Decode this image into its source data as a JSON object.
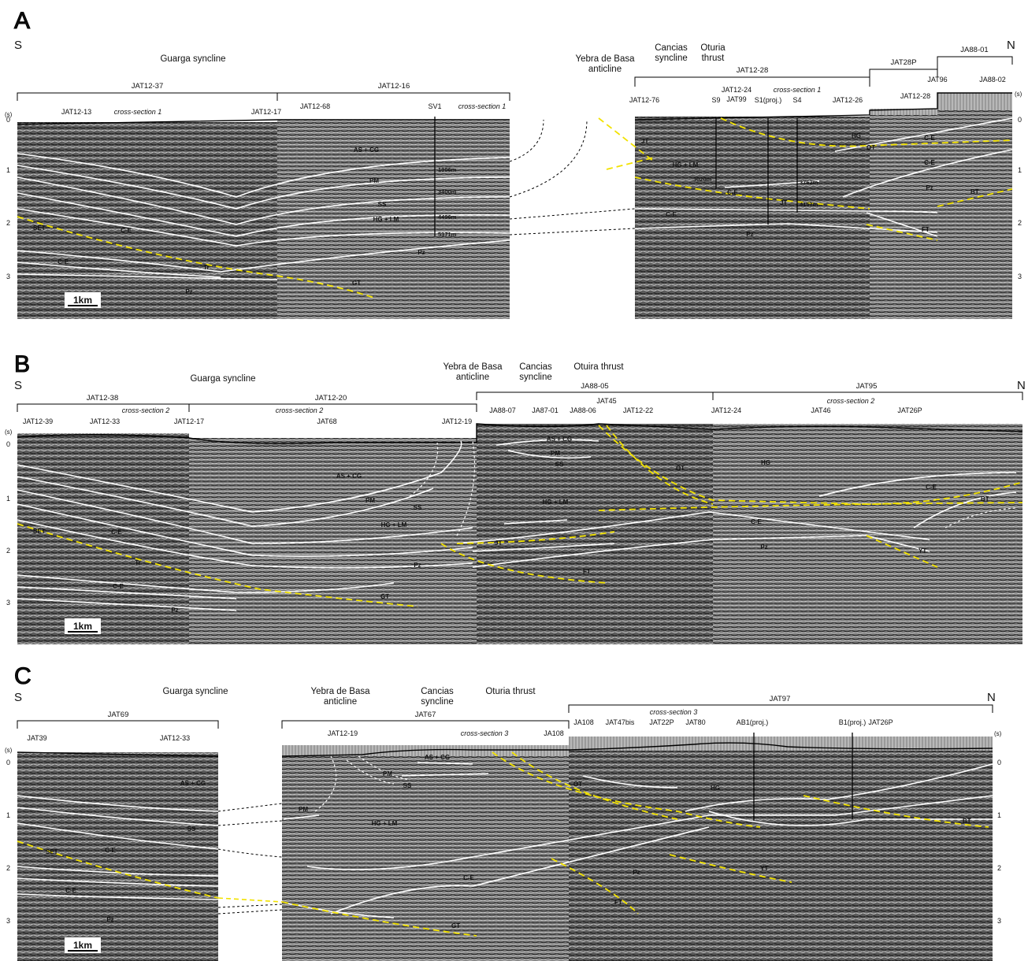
{
  "colors": {
    "yellow": "#f2e200",
    "white": "#ffffff",
    "black": "#000000",
    "seismic_dark": "#303030",
    "seismic_light": "#bdbdbd"
  },
  "panels": [
    {
      "letter": "A",
      "south": "S",
      "north": "N",
      "structures": [
        "Guarga syncline",
        "Yebra de Basa",
        "anticline",
        "Cancias",
        "syncline",
        "Oturia",
        "thrust"
      ],
      "lines": [
        "JAT12-37",
        "JAT12-16",
        "JAT12-28",
        "JAT28P",
        "JA88-01"
      ],
      "wells": [
        "JAT12-13",
        "cross-section 1",
        "JAT12-17",
        "JAT12-68",
        "SV1",
        "cross-section 1",
        "JAT12-76",
        "S9",
        "JAT12-24",
        "JAT99",
        "S1(proj.)",
        "cross-section 1",
        "S4",
        "JAT12-26",
        "JAT12-28",
        "JAT96",
        "JA88-02"
      ],
      "units": [
        "AS + CG",
        "PM",
        "SS",
        "HG + LM",
        "Pz",
        "C-E",
        "C-E",
        "Tr",
        "Pz",
        "HG + LM",
        "C-E",
        "C-E",
        "Pz",
        "HG",
        "C-E",
        "C-E",
        "Pz"
      ],
      "depths": [
        "1906m",
        "3400m",
        "4496m",
        "5371m",
        "3020m",
        "3762m",
        "4157m"
      ],
      "faults": [
        "SET",
        "GT",
        "JT",
        "JT",
        "OT",
        "FT",
        "BT"
      ],
      "axis_unit": "(s)",
      "ticks": [
        "0",
        "1",
        "2",
        "3"
      ],
      "scale": "1km"
    },
    {
      "letter": "B",
      "south": "S",
      "north": "N",
      "structures": [
        "Guarga syncline",
        "Yebra de Basa",
        "anticline",
        "Cancias",
        "syncline",
        "Otuira thrust"
      ],
      "lines": [
        "JAT12-38",
        "JAT12-20",
        "JA88-05",
        "JAT95"
      ],
      "wells": [
        "JAT12-39",
        "JAT12-33",
        "cross-section 2",
        "JAT12-17",
        "cross-section 2",
        "JAT68",
        "JAT12-19",
        "JA88-07",
        "JA87-01",
        "JA88-06",
        "JAT45",
        "JAT12-22",
        "JAT12-24",
        "JAT46",
        "cross-section 2",
        "JAT26P"
      ],
      "units": [
        "AS + CG",
        "PM",
        "SS",
        "HG + LM",
        "C-E",
        "Tr",
        "C-E",
        "Pz",
        "Pz",
        "AS + CG",
        "PM",
        "SS",
        "HG + LM",
        "HG",
        "C-E",
        "C-E",
        "Pz"
      ],
      "faults": [
        "SET",
        "GT",
        "JT",
        "FT",
        "OT",
        "BT",
        "YT"
      ],
      "axis_unit": "(s)",
      "ticks": [
        "0",
        "1",
        "2",
        "3"
      ],
      "scale": "1km"
    },
    {
      "letter": "C",
      "south": "S",
      "north": "N",
      "structures": [
        "Guarga syncline",
        "Yebra de Basa",
        "anticline",
        "Cancias",
        "syncline",
        "Oturia thrust"
      ],
      "lines": [
        "JAT69",
        "JAT67",
        "JAT97"
      ],
      "wells": [
        "JAT39",
        "JAT12-33",
        "JAT12-19",
        "cross-section 3",
        "JA108",
        "JA108",
        "JAT47bis",
        "cross-section 3",
        "JAT22P",
        "JAT80",
        "AB1(proj.)",
        "B1(proj.)",
        "JAT26P"
      ],
      "units": [
        "AS + CG",
        "SS",
        "C-E",
        "C-E",
        "Pz",
        "AS + CG",
        "PM",
        "SS",
        "PM",
        "HG + LM",
        "C-E",
        "Pz",
        "HG"
      ],
      "faults": [
        "SET",
        "GT",
        "FT",
        "OT",
        "YT",
        "BT"
      ],
      "axis_unit": "(s)",
      "ticks": [
        "0",
        "1",
        "2",
        "3"
      ],
      "scale": "1km"
    }
  ]
}
